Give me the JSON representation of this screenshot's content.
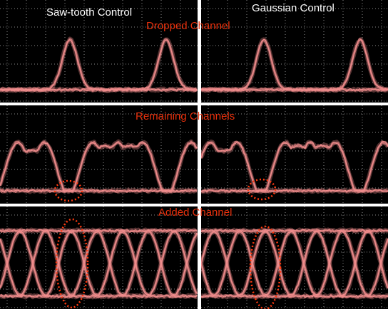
{
  "titles": {
    "left": "Saw-tooth Control",
    "right": "Gaussian Control"
  },
  "rows": [
    "Dropped Channel",
    "Remaining Channels",
    "Added Channel"
  ]
}
